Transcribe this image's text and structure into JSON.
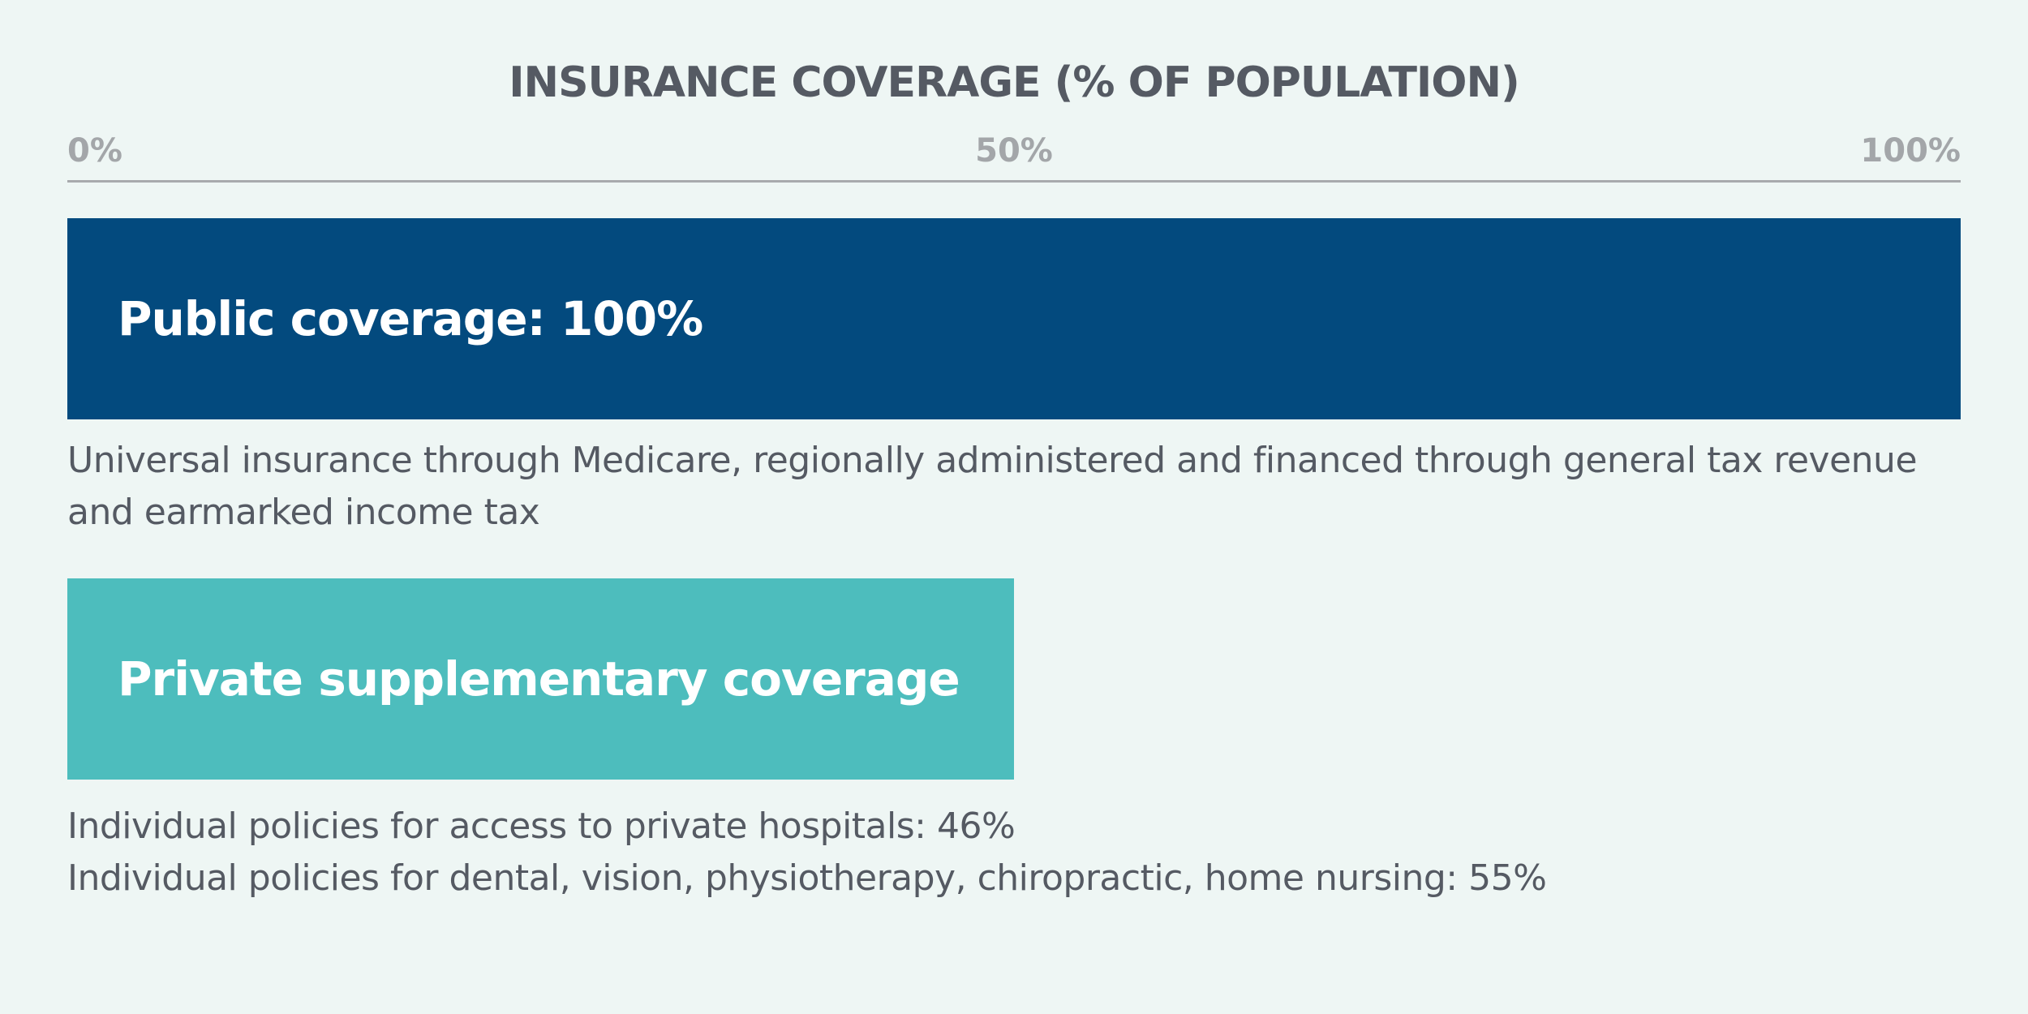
{
  "chart_data": {
    "type": "bar",
    "title": "INSURANCE COVERAGE (% OF POPULATION)",
    "xlim": [
      0,
      100
    ],
    "xticks": [
      "0%",
      "50%",
      "100%"
    ],
    "bars": [
      {
        "label": "Public coverage: 100%",
        "value": 100,
        "color": "#034a7e",
        "description": [
          "Universal insurance through Medicare, regionally administered and financed through general tax revenue",
          "and earmarked income tax"
        ]
      },
      {
        "label": "Private supplementary coverage",
        "value": 50,
        "color": "#4dbdbd",
        "description": [
          "Individual policies for access to private hospitals: 46%",
          "Individual policies for dental, vision, physiotherapy, chiropractic, home nursing: 55%"
        ]
      }
    ]
  }
}
